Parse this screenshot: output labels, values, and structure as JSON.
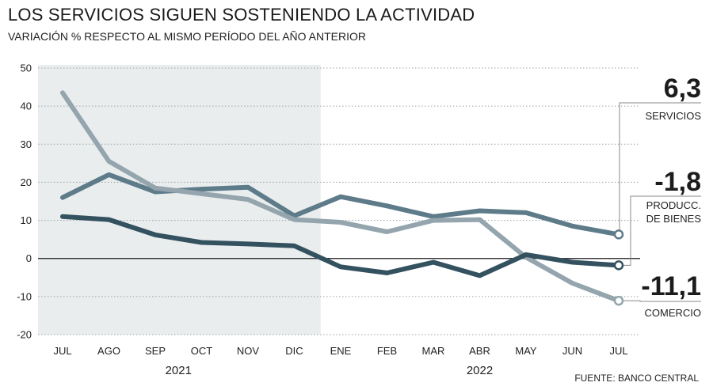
{
  "header": {
    "title": "LOS SERVICIOS SIGUEN SOSTENIENDO LA ACTIVIDAD",
    "subtitle": "VARIACIÓN % RESPECTO AL MISMO PERÍODO DEL AÑO ANTERIOR"
  },
  "source": "FUENTE: BANCO CENTRAL",
  "colors": {
    "servicios": "#5d7b89",
    "comercio": "#94a5ae",
    "bienes": "#33515e",
    "shade": "#e9edee",
    "grid": "#9aa3a8",
    "leader": "#888888"
  },
  "chart_data": {
    "type": "line",
    "title": "LOS SERVICIOS SIGUEN SOSTENIENDO LA ACTIVIDAD",
    "subtitle": "VARIACIÓN % RESPECTO AL MISMO PERÍODO DEL AÑO ANTERIOR",
    "categories": [
      "JUL",
      "AGO",
      "SEP",
      "OCT",
      "NOV",
      "DIC",
      "ENE",
      "FEB",
      "MAR",
      "ABR",
      "MAY",
      "JUN",
      "JUL"
    ],
    "years": [
      {
        "label": "2021",
        "from": 0,
        "to": 5
      },
      {
        "label": "2022",
        "from": 6,
        "to": 12
      }
    ],
    "ylim": [
      -20,
      50
    ],
    "yticks": [
      50,
      40,
      30,
      20,
      10,
      0,
      -10,
      -20
    ],
    "grid": true,
    "shaded_range": [
      0,
      5
    ],
    "series": [
      {
        "key": "servicios",
        "name": "SERVICIOS",
        "final_label": "6,3",
        "values": [
          16,
          22,
          17.5,
          18.2,
          18.7,
          11.2,
          16.2,
          13.8,
          11,
          12.5,
          12,
          8.5,
          6.3
        ]
      },
      {
        "key": "comercio",
        "name": "COMERCIO",
        "final_label": "-11,1",
        "values": [
          43.5,
          25.5,
          18.5,
          17,
          15.5,
          10.2,
          9.5,
          7,
          10,
          10.2,
          0.3,
          -6.5,
          -11.1
        ]
      },
      {
        "key": "bienes",
        "name": "PRODUCC. DE BIENES",
        "name_lines": [
          "PRODUCC.",
          "DE BIENES"
        ],
        "final_label": "-1,8",
        "values": [
          11,
          10.2,
          6.2,
          4.2,
          3.8,
          3.3,
          -2.2,
          -3.8,
          -1,
          -4.5,
          1,
          -1,
          -1.8
        ]
      }
    ]
  }
}
